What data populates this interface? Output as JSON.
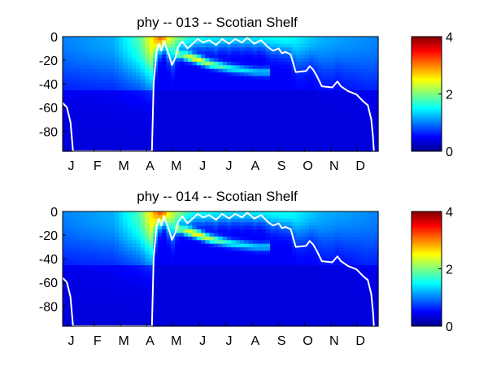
{
  "chart_data": [
    {
      "type": "heatmap",
      "title": "phy -- 013 -- Scotian Shelf",
      "xlabel": "",
      "ylabel": "",
      "x_ticks": [
        "J",
        "F",
        "M",
        "A",
        "M",
        "J",
        "J",
        "A",
        "S",
        "O",
        "N",
        "D"
      ],
      "y_ticks": [
        0,
        -20,
        -40,
        -60,
        -80
      ],
      "ylim": [
        -97,
        0
      ],
      "xlim_days": [
        1,
        365
      ],
      "colorbar": {
        "ticks": [
          0,
          2,
          4
        ],
        "range": [
          0,
          4
        ],
        "colormap": "jet"
      },
      "surface_layer_phy": [
        {
          "day": 1,
          "value": 0.6
        },
        {
          "day": 60,
          "value": 0.8
        },
        {
          "day": 90,
          "value": 1.5
        },
        {
          "day": 105,
          "value": 2.4
        },
        {
          "day": 115,
          "value": 3.0
        },
        {
          "day": 125,
          "value": 2.0
        },
        {
          "day": 150,
          "value": 1.2
        },
        {
          "day": 200,
          "value": 1.0
        },
        {
          "day": 260,
          "value": 1.2
        },
        {
          "day": 300,
          "value": 0.8
        },
        {
          "day": 365,
          "value": 0.6
        }
      ],
      "subsurface_max_phy": [
        {
          "day": 135,
          "depth": -15,
          "value": 1.2
        },
        {
          "day": 155,
          "depth": -19,
          "value": 2.3
        },
        {
          "day": 170,
          "depth": -23,
          "value": 1.8
        },
        {
          "day": 195,
          "depth": -27,
          "value": 1.2
        },
        {
          "day": 225,
          "depth": -30,
          "value": 0.9
        }
      ],
      "white_line_depth": [
        {
          "day": 1,
          "depth": -56
        },
        {
          "day": 6,
          "depth": -60
        },
        {
          "day": 10,
          "depth": -72
        },
        {
          "day": 13,
          "depth": -97
        },
        {
          "day": 104,
          "depth": -97
        },
        {
          "day": 106,
          "depth": -40
        },
        {
          "day": 109,
          "depth": -14
        },
        {
          "day": 112,
          "depth": -6
        },
        {
          "day": 115,
          "depth": -12
        },
        {
          "day": 118,
          "depth": -4
        },
        {
          "day": 124,
          "depth": -16
        },
        {
          "day": 127,
          "depth": -24
        },
        {
          "day": 131,
          "depth": -18
        },
        {
          "day": 134,
          "depth": -9
        },
        {
          "day": 139,
          "depth": -4
        },
        {
          "day": 145,
          "depth": -10
        },
        {
          "day": 151,
          "depth": -6
        },
        {
          "day": 157,
          "depth": -2
        },
        {
          "day": 163,
          "depth": -5
        },
        {
          "day": 170,
          "depth": -3
        },
        {
          "day": 178,
          "depth": -7
        },
        {
          "day": 185,
          "depth": -2
        },
        {
          "day": 193,
          "depth": -6
        },
        {
          "day": 200,
          "depth": -2
        },
        {
          "day": 208,
          "depth": -5
        },
        {
          "day": 214,
          "depth": -1
        },
        {
          "day": 222,
          "depth": -6
        },
        {
          "day": 230,
          "depth": -3
        },
        {
          "day": 238,
          "depth": -9
        },
        {
          "day": 244,
          "depth": -12
        },
        {
          "day": 250,
          "depth": -10
        },
        {
          "day": 254,
          "depth": -14
        },
        {
          "day": 258,
          "depth": -13
        },
        {
          "day": 264,
          "depth": -15
        },
        {
          "day": 270,
          "depth": -30
        },
        {
          "day": 282,
          "depth": -29
        },
        {
          "day": 286,
          "depth": -25
        },
        {
          "day": 290,
          "depth": -28
        },
        {
          "day": 294,
          "depth": -33
        },
        {
          "day": 300,
          "depth": -42
        },
        {
          "day": 312,
          "depth": -43
        },
        {
          "day": 318,
          "depth": -38
        },
        {
          "day": 322,
          "depth": -42
        },
        {
          "day": 330,
          "depth": -46
        },
        {
          "day": 340,
          "depth": -49
        },
        {
          "day": 348,
          "depth": -55
        },
        {
          "day": 353,
          "depth": -58
        },
        {
          "day": 357,
          "depth": -70
        },
        {
          "day": 359,
          "depth": -85
        },
        {
          "day": 360,
          "depth": -97
        }
      ]
    },
    {
      "type": "heatmap",
      "title": "phy -- 014 -- Scotian Shelf",
      "xlabel": "",
      "ylabel": "",
      "x_ticks": [
        "J",
        "F",
        "M",
        "A",
        "M",
        "J",
        "J",
        "A",
        "S",
        "O",
        "N",
        "D"
      ],
      "y_ticks": [
        0,
        -20,
        -40,
        -60,
        -80
      ],
      "ylim": [
        -97,
        0
      ],
      "xlim_days": [
        1,
        365
      ],
      "colorbar": {
        "ticks": [
          0,
          2,
          4
        ],
        "range": [
          0,
          4
        ],
        "colormap": "jet"
      },
      "surface_layer_phy": [
        {
          "day": 1,
          "value": 0.6
        },
        {
          "day": 60,
          "value": 0.8
        },
        {
          "day": 90,
          "value": 1.5
        },
        {
          "day": 105,
          "value": 2.5
        },
        {
          "day": 115,
          "value": 3.1
        },
        {
          "day": 125,
          "value": 2.1
        },
        {
          "day": 150,
          "value": 1.2
        },
        {
          "day": 200,
          "value": 1.0
        },
        {
          "day": 260,
          "value": 1.2
        },
        {
          "day": 300,
          "value": 0.8
        },
        {
          "day": 365,
          "value": 0.6
        }
      ],
      "subsurface_max_phy": [
        {
          "day": 135,
          "depth": -15,
          "value": 1.3
        },
        {
          "day": 155,
          "depth": -19,
          "value": 2.4
        },
        {
          "day": 170,
          "depth": -23,
          "value": 1.9
        },
        {
          "day": 195,
          "depth": -27,
          "value": 1.2
        },
        {
          "day": 225,
          "depth": -30,
          "value": 0.9
        }
      ],
      "white_line_depth": [
        {
          "day": 1,
          "depth": -56
        },
        {
          "day": 6,
          "depth": -60
        },
        {
          "day": 10,
          "depth": -72
        },
        {
          "day": 13,
          "depth": -97
        },
        {
          "day": 104,
          "depth": -97
        },
        {
          "day": 106,
          "depth": -40
        },
        {
          "day": 109,
          "depth": -14
        },
        {
          "day": 112,
          "depth": -6
        },
        {
          "day": 115,
          "depth": -12
        },
        {
          "day": 118,
          "depth": -4
        },
        {
          "day": 124,
          "depth": -16
        },
        {
          "day": 127,
          "depth": -24
        },
        {
          "day": 131,
          "depth": -18
        },
        {
          "day": 134,
          "depth": -9
        },
        {
          "day": 139,
          "depth": -4
        },
        {
          "day": 145,
          "depth": -10
        },
        {
          "day": 151,
          "depth": -6
        },
        {
          "day": 157,
          "depth": -2
        },
        {
          "day": 163,
          "depth": -5
        },
        {
          "day": 170,
          "depth": -3
        },
        {
          "day": 178,
          "depth": -7
        },
        {
          "day": 185,
          "depth": -2
        },
        {
          "day": 193,
          "depth": -6
        },
        {
          "day": 200,
          "depth": -2
        },
        {
          "day": 208,
          "depth": -5
        },
        {
          "day": 214,
          "depth": -1
        },
        {
          "day": 222,
          "depth": -6
        },
        {
          "day": 230,
          "depth": -3
        },
        {
          "day": 238,
          "depth": -9
        },
        {
          "day": 244,
          "depth": -12
        },
        {
          "day": 250,
          "depth": -10
        },
        {
          "day": 254,
          "depth": -14
        },
        {
          "day": 258,
          "depth": -13
        },
        {
          "day": 264,
          "depth": -15
        },
        {
          "day": 270,
          "depth": -30
        },
        {
          "day": 282,
          "depth": -29
        },
        {
          "day": 286,
          "depth": -25
        },
        {
          "day": 290,
          "depth": -28
        },
        {
          "day": 294,
          "depth": -33
        },
        {
          "day": 300,
          "depth": -42
        },
        {
          "day": 312,
          "depth": -43
        },
        {
          "day": 318,
          "depth": -38
        },
        {
          "day": 322,
          "depth": -42
        },
        {
          "day": 330,
          "depth": -46
        },
        {
          "day": 340,
          "depth": -49
        },
        {
          "day": 348,
          "depth": -55
        },
        {
          "day": 353,
          "depth": -58
        },
        {
          "day": 357,
          "depth": -70
        },
        {
          "day": 359,
          "depth": -85
        },
        {
          "day": 360,
          "depth": -97
        }
      ]
    }
  ]
}
